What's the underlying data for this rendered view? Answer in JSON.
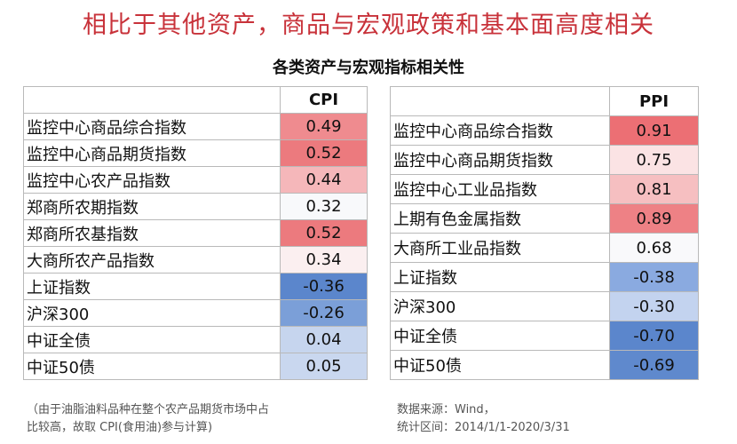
{
  "header": {
    "title": "相比于其他资产，商品与宏观政策和基本面高度相关",
    "subtitle": "各类资产与宏观指标相关性"
  },
  "cpi_table": {
    "column_header": "CPI",
    "rows": [
      {
        "name": "监控中心商品综合指数",
        "value": "0.49",
        "color": "#ef8b8f"
      },
      {
        "name": "监控中心商品期货指数",
        "value": "0.52",
        "color": "#ec7a7e"
      },
      {
        "name": "监控中心农产品指数",
        "value": "0.44",
        "color": "#f5b7ba"
      },
      {
        "name": "郑商所农期指数",
        "value": "0.32",
        "color": "#f8f9fb"
      },
      {
        "name": "郑商所农基指数",
        "value": "0.52",
        "color": "#ec7a7e"
      },
      {
        "name": "大商所农产品指数",
        "value": "0.34",
        "color": "#fbeff0"
      },
      {
        "name": "上证指数",
        "value": "-0.36",
        "color": "#5b86cc"
      },
      {
        "name": "沪深300",
        "value": "-0.26",
        "color": "#7b9fd8"
      },
      {
        "name": "中证全债",
        "value": "0.04",
        "color": "#c6d5ee"
      },
      {
        "name": "中证50债",
        "value": "0.05",
        "color": "#c9d7ef"
      }
    ]
  },
  "ppi_table": {
    "column_header": "PPI",
    "rows": [
      {
        "name": "监控中心商品综合指数",
        "value": "0.91",
        "color": "#ec6f74"
      },
      {
        "name": "监控中心商品期货指数",
        "value": "0.75",
        "color": "#fbe3e4"
      },
      {
        "name": "监控中心工业品指数",
        "value": "0.81",
        "color": "#f6bfc1"
      },
      {
        "name": "上期有色金属指数",
        "value": "0.89",
        "color": "#ee8185"
      },
      {
        "name": "大商所工业品指数",
        "value": "0.68",
        "color": "#f9f9fb"
      },
      {
        "name": "上证指数",
        "value": "-0.38",
        "color": "#8aaae0"
      },
      {
        "name": "沪深300",
        "value": "-0.30",
        "color": "#c3d3ef"
      },
      {
        "name": "中证全债",
        "value": "-0.70",
        "color": "#5b86cc"
      },
      {
        "name": "中证50债",
        "value": "-0.69",
        "color": "#5f89cd"
      }
    ]
  },
  "notes": {
    "left_line1": "（由于油脂油料品种在整个农产品期货市场中占",
    "left_line2": "比较高，故取 CPI(食用油)参与计算)",
    "right_line1": "数据来源：Wind，",
    "right_line2": "统计区间：2014/1/1-2020/3/31"
  }
}
